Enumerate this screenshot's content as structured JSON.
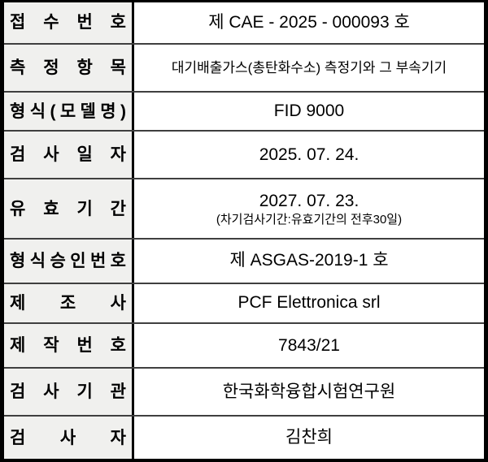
{
  "document": {
    "kind": "inspection-certificate-table",
    "rows": [
      {
        "label": "접수번호",
        "value": "제 CAE - 2025 - 000093 호"
      },
      {
        "label": "측정항목",
        "value": "대기배출가스(총탄화수소) 측정기와 그 부속기기"
      },
      {
        "label": "형식(모델명)",
        "value": "FID 9000"
      },
      {
        "label": "검사일자",
        "value": "2025. 07. 24."
      },
      {
        "label": "유효기간",
        "value": "2027. 07. 23.",
        "note": "(차기검사기간:유효기간의 전후30일)"
      },
      {
        "label": "형식승인번호",
        "value": "제 ASGAS-2019-1 호"
      },
      {
        "label": "제조사",
        "value": "PCF Elettronica srl"
      },
      {
        "label": "제작번호",
        "value": "7843/21"
      },
      {
        "label": "검사기관",
        "value": "한국화학융합시험연구원"
      },
      {
        "label": "검사자",
        "value": "김찬희"
      }
    ],
    "colors": {
      "label_bg": "#f0f0ee",
      "outer_border": "#000000",
      "grid_line": "#3f3f3f",
      "text": "#000000"
    }
  }
}
